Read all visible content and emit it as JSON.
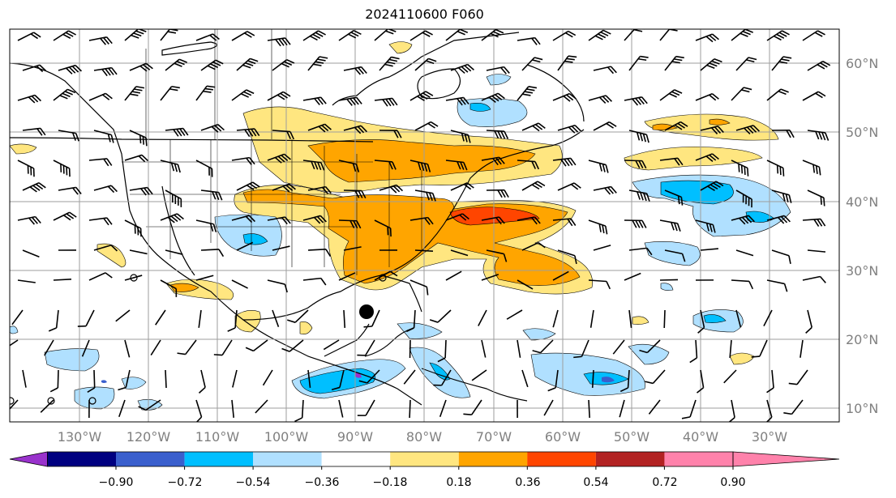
{
  "title": "2024110600 F060",
  "lon_labels": [
    "130°W",
    "120°W",
    "110°W",
    "100°W",
    "90°W",
    "80°W",
    "70°W",
    "60°W",
    "50°W",
    "40°W",
    "30°W"
  ],
  "lat_labels": [
    "60°N",
    "50°N",
    "40°N",
    "30°N",
    "20°N",
    "10°N"
  ],
  "colorbar": {
    "labels": [
      "−0.90",
      "−0.72",
      "−0.54",
      "−0.36",
      "−0.18",
      "0.18",
      "0.36",
      "0.54",
      "0.72",
      "0.90"
    ],
    "colors": [
      "#9932cc",
      "#000080",
      "#3a5fcd",
      "#00bfff",
      "#b0e0ff",
      "#ffffff",
      "#ffe680",
      "#ffa500",
      "#ff4500",
      "#b22222",
      "#ff82ab"
    ]
  },
  "colors": {
    "pos_light": "#ffe680",
    "pos_mid": "#ffa500",
    "pos_strong": "#ff4500",
    "neg_light": "#b0e0ff",
    "neg_mid": "#00bfff",
    "neg_strong": "#3a5fcd",
    "neg_max": "#9932cc",
    "grid": "#9e9e9e"
  },
  "marker": {
    "label": "storm-center-marker"
  }
}
